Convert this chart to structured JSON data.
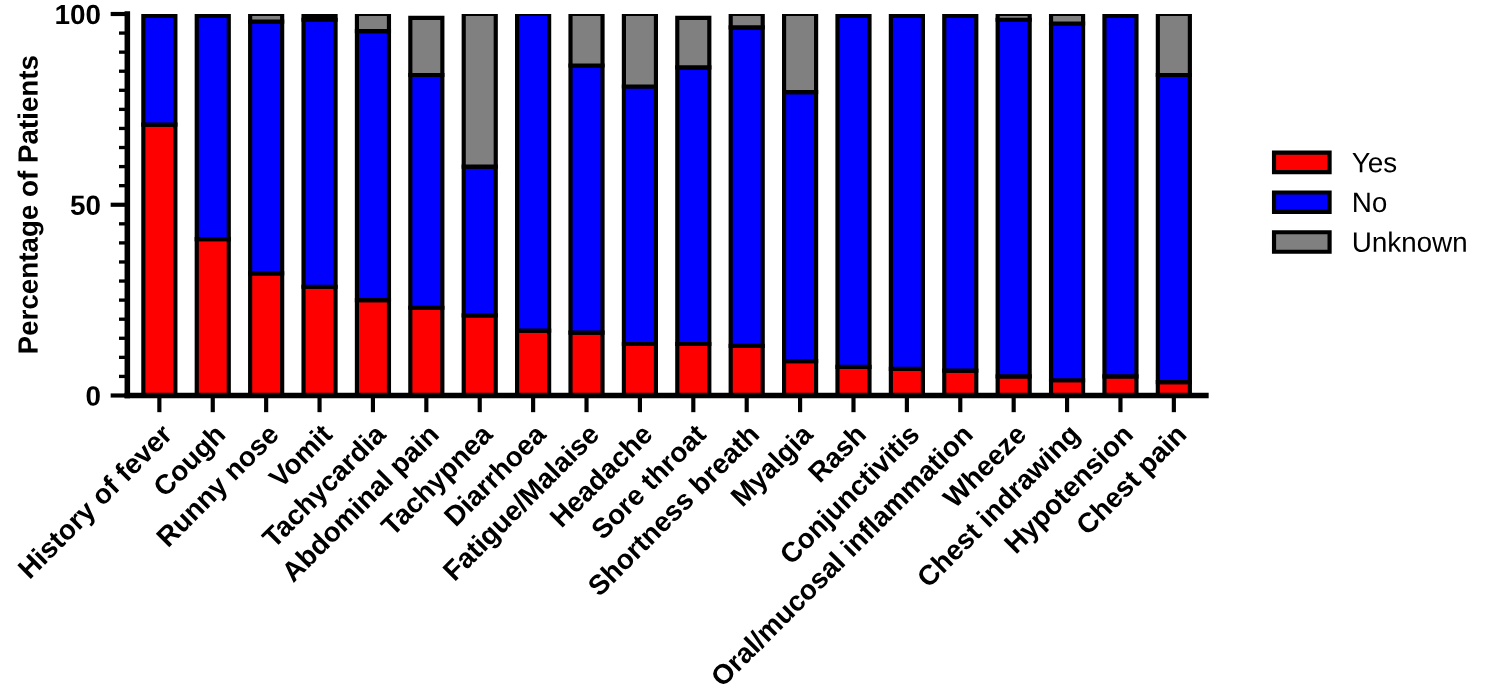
{
  "chart_data": {
    "type": "bar",
    "stacked": true,
    "ylabel": "Percentage of Patients",
    "categories": [
      "History of fever",
      "Cough",
      "Runny nose",
      "Vomit",
      "Tachycardia",
      "Abdominal pain",
      "Tachypnea",
      "Diarrhoea",
      "Fatigue/Malaise",
      "Headache",
      "Sore throat",
      "Shortness breath",
      "Myalgia",
      "Rash",
      "Conjunctivitis",
      "Oral/mucosal inflammation",
      "Wheeze",
      "Chest indrawing",
      "Hypotension",
      "Chest pain"
    ],
    "series": [
      {
        "name": "Yes",
        "color": "#ff0000",
        "values": [
          71,
          41,
          32,
          28.5,
          25,
          23,
          21,
          17,
          16.5,
          13.5,
          13.5,
          13,
          9,
          7.5,
          7,
          6.5,
          5,
          4,
          5,
          3.5
        ]
      },
      {
        "name": "No",
        "color": "#0000ff",
        "values": [
          28.5,
          58.5,
          66,
          70,
          70.5,
          61,
          39,
          83,
          70,
          67.5,
          72.5,
          83.5,
          70.5,
          92,
          92.5,
          93,
          93.5,
          93.5,
          94.5,
          80.5
        ]
      },
      {
        "name": "Unknown",
        "color": "#808080",
        "values": [
          null,
          null,
          2,
          1,
          4.5,
          15,
          40,
          null,
          13.5,
          19,
          13,
          3.5,
          20.5,
          null,
          null,
          null,
          1.5,
          2.5,
          null,
          16
        ]
      }
    ],
    "ylim": [
      0,
      100
    ],
    "yticks": [
      0,
      {
        "value": 5,
        "label": null
      },
      {
        "value": 10,
        "label": null
      },
      {
        "value": 15,
        "label": null
      },
      {
        "value": 20,
        "label": null
      },
      {
        "value": 25,
        "label": null
      },
      {
        "value": 30,
        "label": null
      },
      {
        "value": 35,
        "label": null
      },
      {
        "value": 40,
        "label": null
      },
      {
        "value": 45,
        "label": null
      },
      50,
      {
        "value": 55,
        "label": null
      },
      {
        "value": 60,
        "label": null
      },
      {
        "value": 65,
        "label": null
      },
      {
        "value": 70,
        "label": null
      },
      {
        "value": 75,
        "label": null
      },
      {
        "value": 80,
        "label": null
      },
      {
        "value": 85,
        "label": null
      },
      {
        "value": 90,
        "label": null
      },
      {
        "value": 95,
        "label": null
      },
      100
    ],
    "grid": false,
    "legend": "right"
  }
}
